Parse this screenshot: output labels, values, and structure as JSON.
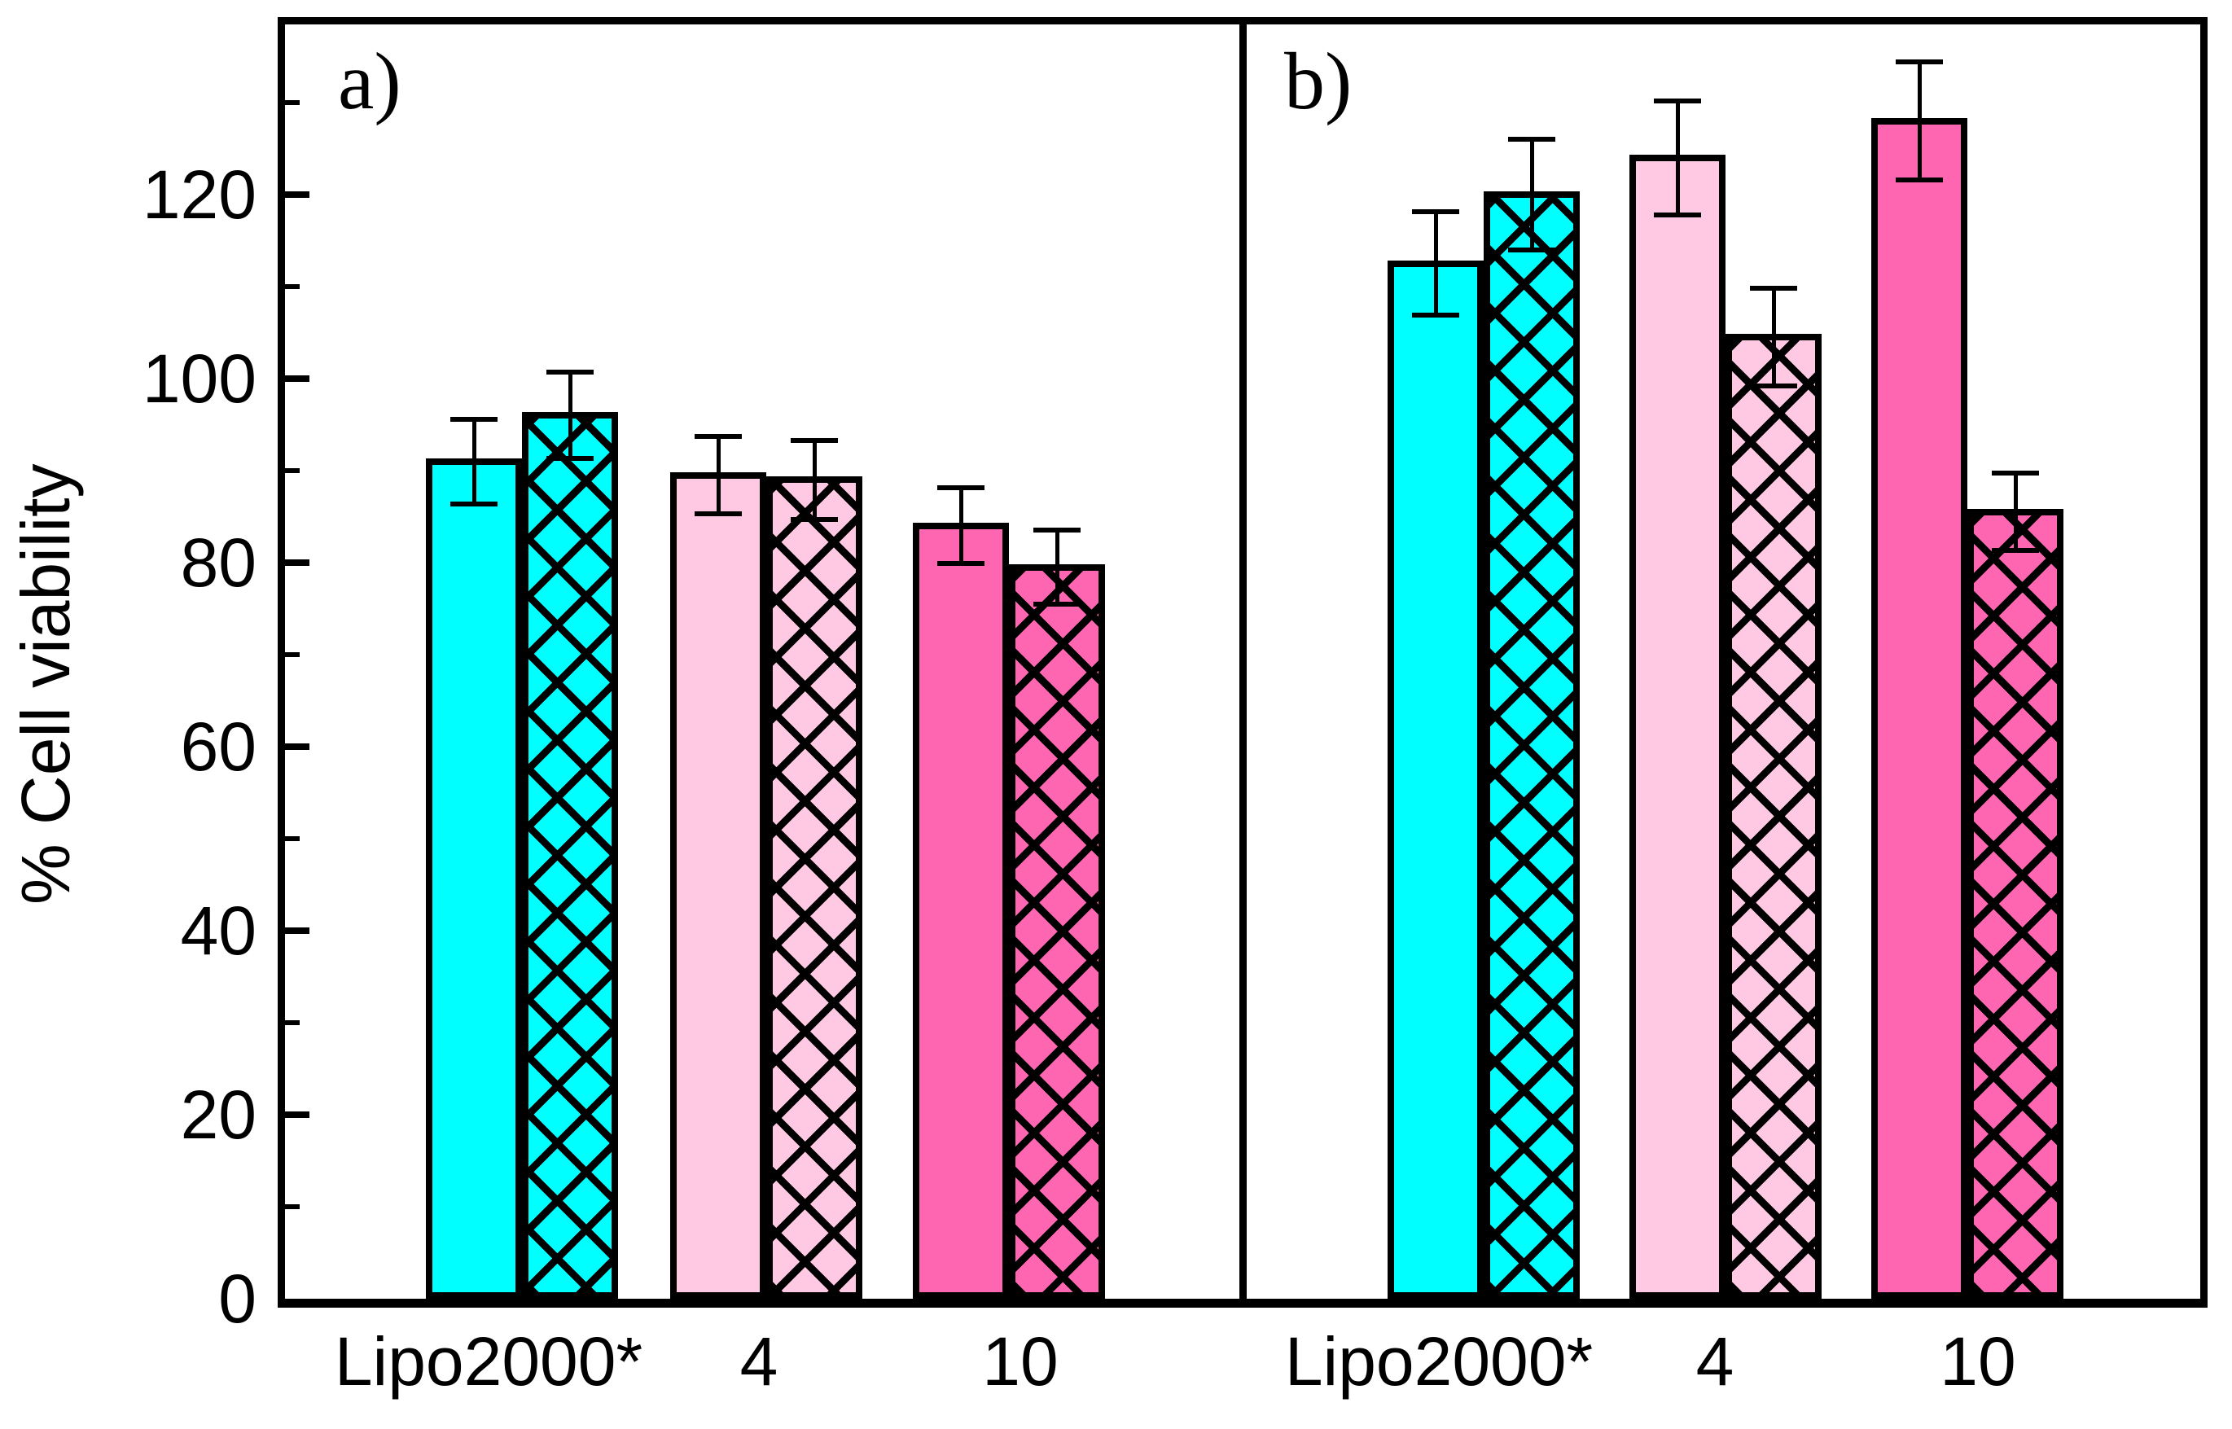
{
  "chart_data": {
    "type": "bar",
    "title": "",
    "xlabel": "",
    "ylabel": "% Cell viability",
    "ylim": [
      0,
      139
    ],
    "grid": false,
    "legend": "none",
    "yticks_major": [
      0,
      20,
      40,
      60,
      80,
      100,
      120
    ],
    "yticks_minor": [
      10,
      30,
      50,
      70,
      90,
      110,
      130
    ],
    "bar_colors": [
      "#00ffff",
      "#ffc9e3",
      "#ff66b2"
    ],
    "bar_border_color": "#000000",
    "error_bar_color": "#000000",
    "panels": [
      {
        "label": "a)",
        "categories": [
          "Lipo2000*",
          "4",
          "10"
        ],
        "series": [
          {
            "name": "solid",
            "values": [
              91,
              89.5,
              84
            ],
            "errors": [
              4.6,
              4.2,
              4.1
            ]
          },
          {
            "name": "hatched",
            "values": [
              96,
              89,
              79.5
            ],
            "errors": [
              4.7,
              4.3,
              4.0
            ]
          }
        ]
      },
      {
        "label": "b)",
        "categories": [
          "Lipo2000*",
          "4",
          "10"
        ],
        "series": [
          {
            "name": "solid",
            "values": [
              112.5,
              124,
              128
            ],
            "errors": [
              5.6,
              6.2,
              6.4
            ]
          },
          {
            "name": "hatched",
            "values": [
              120,
              104.5,
              85.5
            ],
            "errors": [
              6.0,
              5.3,
              4.2
            ]
          }
        ]
      }
    ]
  }
}
